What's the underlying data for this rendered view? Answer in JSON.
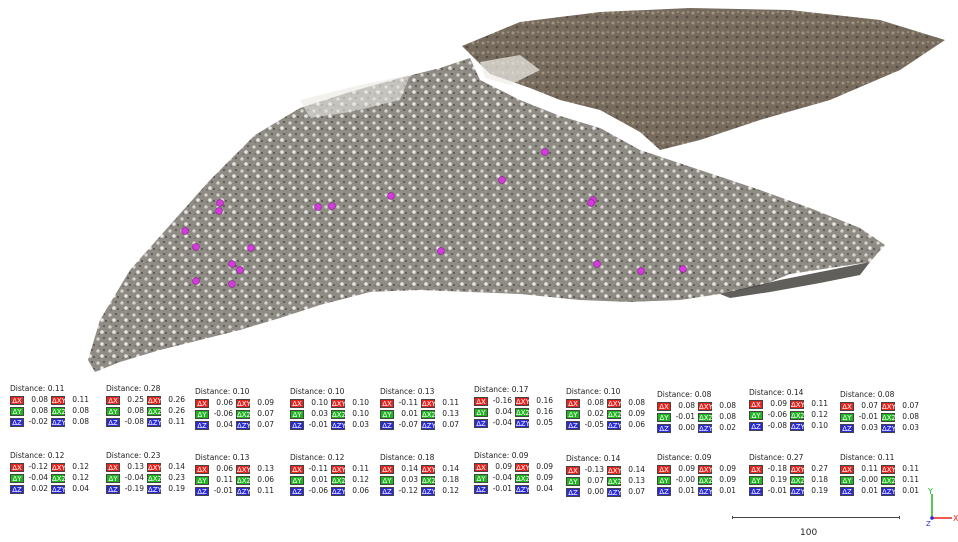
{
  "labels_row1": [
    {
      "title": "Distance: 0.11",
      "dx": "0.08",
      "dxy": "0.11",
      "dy": "0.08",
      "dxz": "0.08",
      "dz": "-0.02",
      "dzy": "0.08"
    },
    {
      "title": "Distance: 0.28",
      "dx": "0.25",
      "dxy": "0.26",
      "dy": "0.08",
      "dxz": "0.26",
      "dz": "-0.08",
      "dzy": "0.11"
    },
    {
      "title": "Distance: 0.10",
      "dx": "0.06",
      "dxy": "0.09",
      "dy": "-0.06",
      "dxz": "0.07",
      "dz": "0.04",
      "dzy": "0.07"
    },
    {
      "title": "Distance: 0.10",
      "dx": "0.10",
      "dxy": "0.10",
      "dy": "0.03",
      "dxz": "0.10",
      "dz": "-0.01",
      "dzy": "0.03"
    },
    {
      "title": "Distance: 0.13",
      "dx": "-0.11",
      "dxy": "0.11",
      "dy": "0.01",
      "dxz": "0.13",
      "dz": "-0.07",
      "dzy": "0.07"
    },
    {
      "title": "Distance: 0.17",
      "dx": "-0.16",
      "dxy": "0.16",
      "dy": "0.04",
      "dxz": "0.16",
      "dz": "-0.04",
      "dzy": "0.05"
    },
    {
      "title": "Distance: 0.10",
      "dx": "0.08",
      "dxy": "0.08",
      "dy": "0.02",
      "dxz": "0.09",
      "dz": "-0.05",
      "dzy": "0.06"
    },
    {
      "title": "Distance: 0.08",
      "dx": "0.08",
      "dxy": "0.08",
      "dy": "-0.01",
      "dxz": "0.08",
      "dz": "0.00",
      "dzy": "0.02"
    },
    {
      "title": "Distance: 0.14",
      "dx": "0.09",
      "dxy": "0.11",
      "dy": "-0.06",
      "dxz": "0.12",
      "dz": "-0.08",
      "dzy": "0.10"
    },
    {
      "title": "Distance: 0.08",
      "dx": "0.07",
      "dxy": "0.07",
      "dy": "-0.01",
      "dxz": "0.08",
      "dz": "0.03",
      "dzy": "0.03"
    }
  ],
  "labels_row2": [
    {
      "title": "Distance: 0.12",
      "dx": "-0.12",
      "dxy": "0.12",
      "dy": "-0.04",
      "dxz": "0.12",
      "dz": "0.02",
      "dzy": "0.04"
    },
    {
      "title": "Distance: 0.23",
      "dx": "0.13",
      "dxy": "0.14",
      "dy": "-0.04",
      "dxz": "0.23",
      "dz": "-0.19",
      "dzy": "0.19"
    },
    {
      "title": "Distance: 0.13",
      "dx": "0.06",
      "dxy": "0.13",
      "dy": "0.11",
      "dxz": "0.06",
      "dz": "-0.01",
      "dzy": "0.11"
    },
    {
      "title": "Distance: 0.12",
      "dx": "-0.11",
      "dxy": "0.11",
      "dy": "0.01",
      "dxz": "0.12",
      "dz": "-0.06",
      "dzy": "0.06"
    },
    {
      "title": "Distance: 0.18",
      "dx": "0.14",
      "dxy": "0.14",
      "dy": "0.03",
      "dxz": "0.18",
      "dz": "-0.12",
      "dzy": "0.12"
    },
    {
      "title": "Distance: 0.09",
      "dx": "0.09",
      "dxy": "0.09",
      "dy": "-0.04",
      "dxz": "0.09",
      "dz": "-0.01",
      "dzy": "0.04"
    },
    {
      "title": "Distance: 0.14",
      "dx": "-0.13",
      "dxy": "0.14",
      "dy": "0.07",
      "dxz": "0.13",
      "dz": "0.00",
      "dzy": "0.07"
    },
    {
      "title": "Distance: 0.09",
      "dx": "0.09",
      "dxy": "0.09",
      "dy": "-0.00",
      "dxz": "0.09",
      "dz": "0.01",
      "dzy": "0.01"
    },
    {
      "title": "Distance: 0.27",
      "dx": "-0.18",
      "dxy": "0.27",
      "dy": "0.19",
      "dxz": "0.18",
      "dz": "-0.01",
      "dzy": "0.19"
    },
    {
      "title": "Distance: 0.11",
      "dx": "0.11",
      "dxy": "0.11",
      "dy": "-0.00",
      "dxz": "0.11",
      "dz": "0.01",
      "dzy": "0.01"
    }
  ],
  "keys": {
    "dx": "ΔX",
    "dy": "ΔY",
    "dz": "ΔZ",
    "dxy": "ΔXY",
    "dxz": "ΔXZ",
    "dzy": "ΔZY"
  },
  "scale": {
    "label": "100"
  },
  "axes": {
    "x": "X",
    "y": "Y",
    "z": "Z"
  },
  "colors": {
    "x": "#e8231d",
    "y": "#1fb51f",
    "z": "#2a2ad6",
    "marker": "#d63adf"
  }
}
